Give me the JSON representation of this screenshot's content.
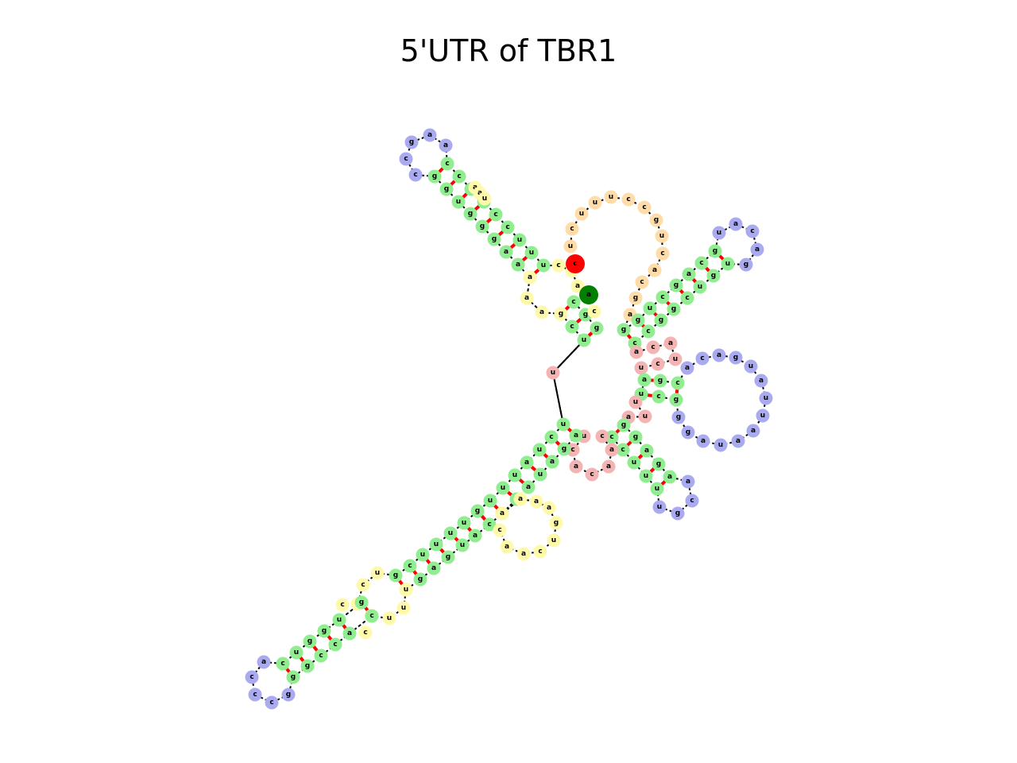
{
  "title": "5'UTR of TBR1",
  "colors": {
    "stem": "#90ee90",
    "hairpin_loop": "#aaaaf0",
    "interior_loop": "#fffaaa",
    "multiloop": "#f5b4b4",
    "exterior": "#ffdca8",
    "pair_bond": "#ff0000",
    "backbone": "#000000",
    "five_prime_marker": "#008000",
    "three_prime_marker": "#ff0000"
  },
  "legend": null
}
